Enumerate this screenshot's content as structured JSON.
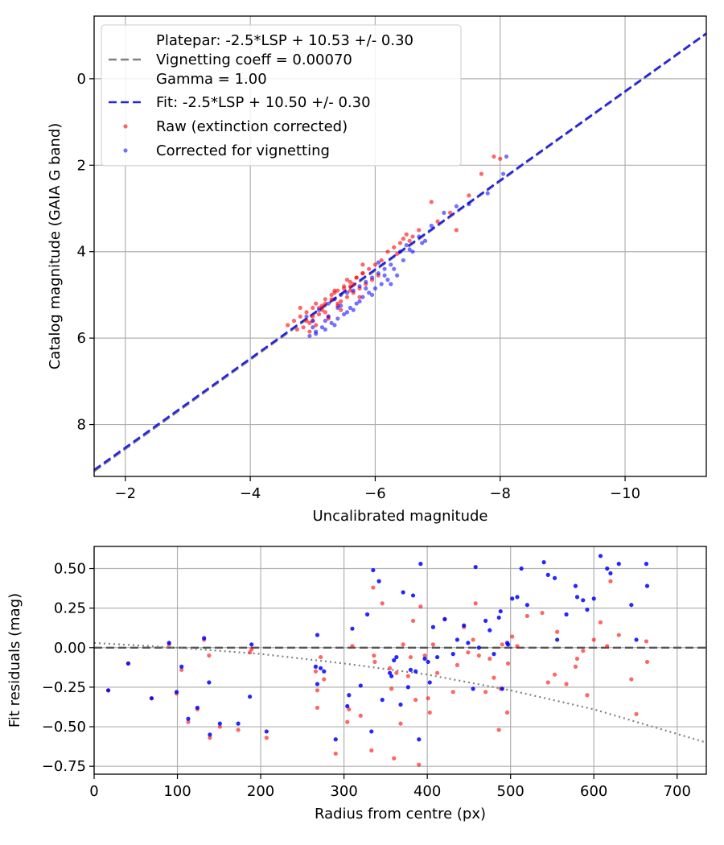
{
  "colors": {
    "raw": "#ff0000",
    "corrected": "#0000ff",
    "platepar_line": "#808080",
    "fit_line": "#2323e6",
    "grid": "#b0b0b0"
  },
  "chart_data": [
    {
      "type": "scatter",
      "xlabel": "Uncalibrated magnitude",
      "ylabel": "Catalog magnitude (GAIA G band)",
      "xlim": [
        -1.5,
        -11.3
      ],
      "ylim": [
        9.2,
        -1.45
      ],
      "x_inverted": true,
      "y_inverted": true,
      "grid": true,
      "xticks": [
        -2,
        -4,
        -6,
        -8,
        -10
      ],
      "yticks": [
        0,
        2,
        4,
        6,
        8
      ],
      "xtick_labels": [
        "−2",
        "−4",
        "−6",
        "−8",
        "−10"
      ],
      "ytick_labels": [
        "0",
        "2",
        "4",
        "6",
        "8"
      ],
      "legend_position": "upper-left",
      "legend": [
        {
          "label": "Platepar: -2.5*LSP + 10.53 +/- 0.30\nVignetting coeff = 0.00070\nGamma = 1.00",
          "style": "dashed",
          "color": "#808080"
        },
        {
          "label": "Fit: -2.5*LSP + 10.50 +/- 0.30",
          "style": "dashed",
          "color": "#2323e6"
        },
        {
          "label": "Raw (extinction corrected)",
          "style": "marker",
          "color": "#ff0000"
        },
        {
          "label": "Corrected for vignetting",
          "style": "marker",
          "color": "#0000ff"
        }
      ],
      "lines": [
        {
          "name": "Platepar",
          "x": [
            -1.5,
            -11.3
          ],
          "y": [
            9.08,
            -1.04
          ]
        },
        {
          "name": "Fit",
          "x": [
            -1.5,
            -11.3
          ],
          "y": [
            9.05,
            -1.05
          ]
        }
      ],
      "series": [
        {
          "name": "Raw (extinction corrected)",
          "x": [
            -4.6,
            -4.7,
            -4.8,
            -4.9,
            -5.0,
            -4.85,
            -4.95,
            -5.05,
            -5.1,
            -5.2,
            -5.15,
            -5.3,
            -5.25,
            -5.35,
            -5.4,
            -5.5,
            -5.45,
            -5.6,
            -5.55,
            -5.7,
            -5.65,
            -5.8,
            -5.75,
            -5.9,
            -5.85,
            -6.0,
            -5.95,
            -6.1,
            -6.05,
            -4.75,
            -4.9,
            -5.0,
            -5.1,
            -5.2,
            -5.3,
            -5.4,
            -5.5,
            -5.6,
            -5.7,
            -5.8,
            -4.8,
            -5.0,
            -5.2,
            -5.4,
            -5.6,
            -5.8,
            -6.2,
            -6.3,
            -6.4,
            -6.5,
            -6.55,
            -6.6,
            -6.7,
            -6.9,
            -7.0,
            -7.2,
            -7.3,
            -7.5,
            -7.7,
            -7.9,
            -8.0,
            -6.45,
            -6.35,
            -5.05,
            -5.25,
            -5.45,
            -5.65,
            -4.95,
            -5.15,
            -5.35,
            -5.55,
            -5.75
          ],
          "y": [
            5.7,
            5.6,
            5.5,
            5.4,
            5.3,
            5.75,
            5.65,
            5.2,
            5.45,
            5.1,
            5.35,
            5.0,
            5.55,
            4.9,
            5.25,
            4.8,
            5.15,
            4.7,
            5.05,
            4.6,
            4.95,
            4.5,
            4.85,
            4.4,
            4.75,
            4.3,
            4.65,
            4.2,
            4.55,
            5.8,
            5.6,
            5.5,
            5.3,
            5.2,
            5.1,
            4.9,
            4.85,
            4.8,
            4.6,
            4.5,
            5.3,
            5.6,
            5.4,
            5.2,
            4.9,
            4.3,
            4.0,
            3.9,
            3.8,
            3.6,
            3.75,
            3.65,
            3.5,
            2.85,
            3.3,
            3.1,
            3.5,
            2.7,
            2.2,
            1.8,
            1.85,
            3.7,
            4.05,
            5.7,
            5.5,
            5.35,
            4.75,
            5.85,
            5.25,
            4.95,
            4.65,
            5.05
          ]
        },
        {
          "name": "Corrected for vignetting",
          "x": [
            -4.9,
            -5.0,
            -5.05,
            -5.1,
            -5.2,
            -5.25,
            -5.3,
            -5.35,
            -5.4,
            -5.45,
            -5.5,
            -5.55,
            -5.6,
            -5.65,
            -5.7,
            -5.75,
            -5.8,
            -5.85,
            -5.9,
            -5.95,
            -6.0,
            -6.05,
            -6.1,
            -6.15,
            -6.2,
            -6.25,
            -4.95,
            -5.15,
            -5.35,
            -5.55,
            -5.75,
            -5.95,
            -6.15,
            -6.3,
            -6.4,
            -6.5,
            -6.6,
            -6.7,
            -6.8,
            -6.9,
            -7.1,
            -7.3,
            -7.5,
            -7.8,
            -8.05,
            -8.1,
            -5.05,
            -5.25,
            -5.45,
            -5.65,
            -5.85,
            -6.05,
            -6.25,
            -6.45,
            -6.35,
            -6.55,
            -6.75,
            -5.0,
            -5.2,
            -5.4
          ],
          "y": [
            5.5,
            5.6,
            5.9,
            5.35,
            5.8,
            5.2,
            5.65,
            5.1,
            5.55,
            5.0,
            5.45,
            4.95,
            5.3,
            4.9,
            5.2,
            4.8,
            5.05,
            4.7,
            4.95,
            4.6,
            4.85,
            4.5,
            4.75,
            4.4,
            4.65,
            4.3,
            5.95,
            5.75,
            5.7,
            5.4,
            5.15,
            5.0,
            4.55,
            4.4,
            4.0,
            3.85,
            4.0,
            3.65,
            3.75,
            3.4,
            3.1,
            2.95,
            2.9,
            2.65,
            2.2,
            1.8,
            5.85,
            5.5,
            5.25,
            5.35,
            4.85,
            4.25,
            4.75,
            4.2,
            4.55,
            3.95,
            3.8,
            5.75,
            5.6,
            5.3
          ]
        }
      ]
    },
    {
      "type": "scatter",
      "xlabel": "Radius from centre (px)",
      "ylabel": "Fit residuals (mag)",
      "xlim": [
        0,
        735
      ],
      "ylim": [
        -0.8,
        0.64
      ],
      "grid": true,
      "xticks": [
        0,
        100,
        200,
        300,
        400,
        500,
        600,
        700
      ],
      "yticks": [
        -0.75,
        -0.5,
        -0.25,
        0.0,
        0.25,
        0.5
      ],
      "xtick_labels": [
        "0",
        "100",
        "200",
        "300",
        "400",
        "500",
        "600",
        "700"
      ],
      "ytick_labels": [
        "−0.75",
        "−0.50",
        "−0.25",
        "0.00",
        "0.25",
        "0.50"
      ],
      "lines": [
        {
          "name": "zero",
          "style": "dashed",
          "x": [
            0,
            735
          ],
          "y": [
            0,
            0
          ]
        },
        {
          "name": "vignetting model",
          "style": "dotted",
          "x": [
            0,
            100,
            200,
            300,
            400,
            500,
            600,
            735
          ],
          "y": [
            0.03,
            0.0,
            -0.04,
            -0.1,
            -0.17,
            -0.27,
            -0.39,
            -0.6
          ]
        }
      ],
      "series": [
        {
          "name": "Raw (extinction corrected)",
          "x": [
            17,
            41,
            69,
            90,
            99,
            105,
            113,
            124,
            132,
            138,
            139,
            151,
            173,
            187,
            189,
            207,
            266,
            268,
            268,
            272,
            276,
            290,
            304,
            306,
            310,
            320,
            333,
            335,
            336,
            337,
            346,
            355,
            357,
            360,
            363,
            368,
            371,
            377,
            380,
            383,
            386,
            390,
            392,
            397,
            401,
            403,
            407,
            412,
            421,
            431,
            436,
            444,
            449,
            455,
            458,
            462,
            470,
            475,
            480,
            486,
            488,
            490,
            496,
            497,
            502,
            508,
            520,
            538,
            545,
            553,
            556,
            567,
            578,
            580,
            587,
            592,
            600,
            608,
            616,
            620,
            630,
            645,
            651,
            663,
            664
          ],
          "y": [
            -0.27,
            -0.1,
            -0.32,
            0.02,
            -0.29,
            -0.14,
            -0.47,
            -0.39,
            0.05,
            -0.05,
            -0.57,
            -0.5,
            -0.52,
            -0.03,
            -0.01,
            -0.57,
            -0.15,
            -0.27,
            -0.38,
            -0.06,
            -0.2,
            -0.67,
            -0.47,
            -0.39,
            0.01,
            -0.43,
            -0.65,
            0.38,
            -0.05,
            -0.09,
            0.28,
            -0.13,
            -0.26,
            -0.7,
            -0.16,
            -0.48,
            0.02,
            -0.18,
            -0.06,
            0.17,
            -0.33,
            -0.74,
            0.26,
            -0.05,
            -0.32,
            -0.41,
            0.02,
            -0.16,
            0.18,
            -0.28,
            -0.11,
            0.13,
            -0.03,
            0.05,
            0.28,
            -0.05,
            -0.28,
            -0.07,
            -0.19,
            -0.52,
            -0.26,
            0.02,
            -0.41,
            -0.1,
            0.07,
            0.01,
            0.2,
            0.22,
            -0.22,
            -0.17,
            0.1,
            -0.23,
            -0.12,
            -0.07,
            -0.02,
            -0.3,
            0.05,
            0.16,
            0.01,
            0.42,
            0.08,
            -0.2,
            -0.42,
            0.04,
            -0.09
          ]
        },
        {
          "name": "Corrected for vignetting",
          "x": [
            17,
            41,
            69,
            90,
            99,
            105,
            113,
            124,
            132,
            138,
            139,
            151,
            173,
            187,
            189,
            207,
            266,
            268,
            268,
            272,
            276,
            290,
            304,
            306,
            310,
            320,
            328,
            333,
            335,
            342,
            346,
            355,
            357,
            360,
            363,
            368,
            371,
            377,
            380,
            383,
            386,
            390,
            392,
            397,
            401,
            403,
            407,
            412,
            421,
            431,
            436,
            444,
            449,
            455,
            458,
            462,
            470,
            475,
            480,
            486,
            488,
            490,
            496,
            497,
            502,
            508,
            513,
            520,
            540,
            545,
            553,
            556,
            567,
            578,
            580,
            587,
            592,
            600,
            608,
            616,
            620,
            630,
            645,
            651,
            663,
            664
          ],
          "y": [
            -0.27,
            -0.1,
            -0.32,
            0.03,
            -0.28,
            -0.12,
            -0.45,
            -0.38,
            0.06,
            -0.22,
            -0.55,
            -0.48,
            -0.48,
            -0.31,
            0.02,
            -0.53,
            -0.12,
            -0.23,
            0.08,
            -0.13,
            -0.15,
            -0.58,
            -0.37,
            -0.3,
            0.12,
            -0.24,
            0.21,
            -0.53,
            0.49,
            0.42,
            -0.33,
            -0.16,
            -0.18,
            -0.08,
            -0.06,
            -0.36,
            0.35,
            -0.25,
            -0.14,
            0.33,
            -0.15,
            -0.58,
            0.53,
            -0.07,
            -0.09,
            -0.22,
            0.13,
            -0.06,
            0.18,
            -0.04,
            0.05,
            0.14,
            0.03,
            -0.26,
            0.51,
            0.0,
            0.17,
            0.11,
            -0.04,
            0.19,
            0.23,
            -0.26,
            0.03,
            0.02,
            0.31,
            0.32,
            0.5,
            0.27,
            0.54,
            0.46,
            0.44,
            0.05,
            0.21,
            0.39,
            0.32,
            0.3,
            0.24,
            0.31,
            0.58,
            0.5,
            0.47,
            0.53,
            0.27,
            0.05,
            0.53,
            0.39
          ]
        }
      ]
    }
  ]
}
